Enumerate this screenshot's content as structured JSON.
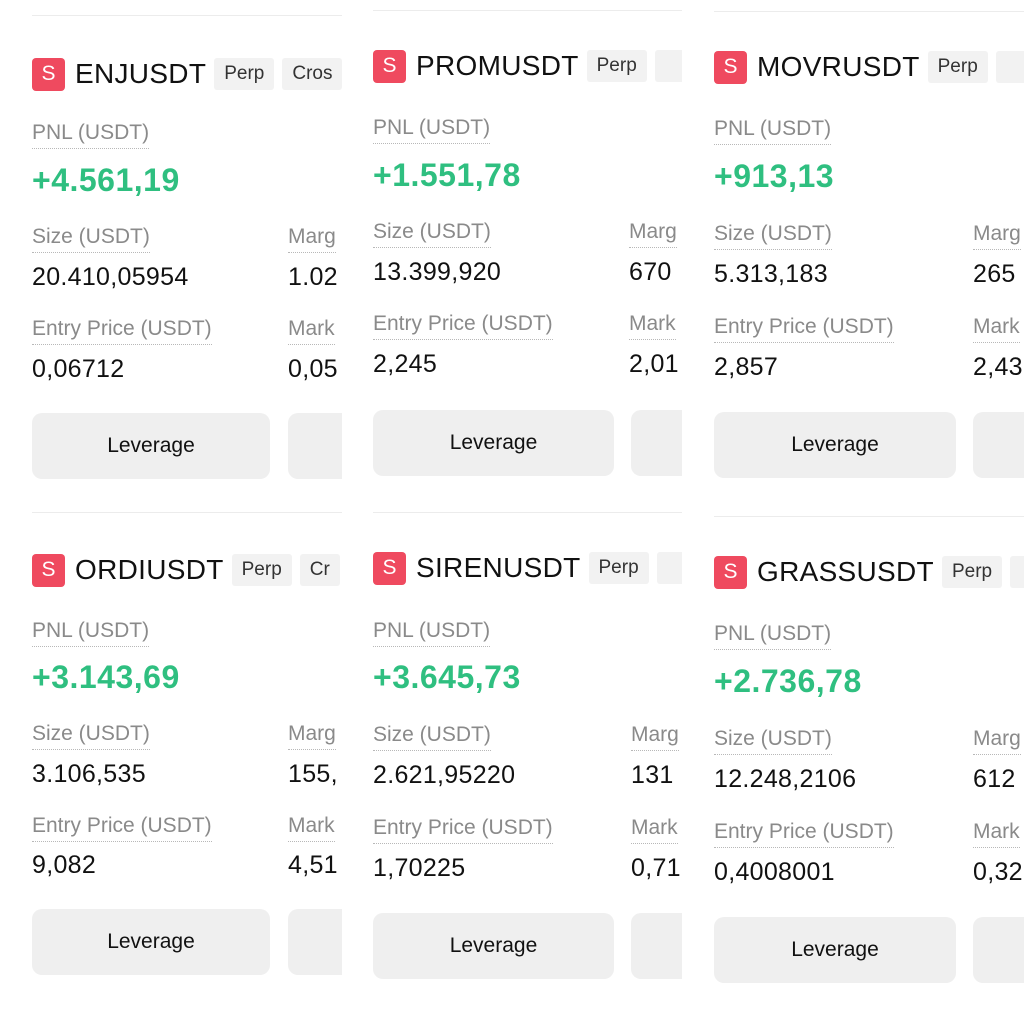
{
  "labels": {
    "pnl": "PNL (USDT)",
    "size": "Size (USDT)",
    "margin": "Marg",
    "entry": "Entry Price (USDT)",
    "mark": "Mark",
    "leverage": "Leverage"
  },
  "positions": [
    {
      "symbol": "ENJUSDT",
      "tag1": "Perp",
      "tag2": "Cros",
      "pnl": "+4.561,19",
      "size": "20.410,05954",
      "margin": "1.02",
      "entry": "0,06712",
      "mark": "0,05"
    },
    {
      "symbol": "PROMUSDT",
      "tag1": "Perp",
      "tag2": "",
      "pnl": "+1.551,78",
      "size": "13.399,920",
      "margin": "670",
      "entry": "2,245",
      "mark": "2,01"
    },
    {
      "symbol": "MOVRUSDT",
      "tag1": "Perp",
      "tag2": "",
      "pnl": "+913,13",
      "size": "5.313,183",
      "margin": "265",
      "entry": "2,857",
      "mark": "2,43"
    },
    {
      "symbol": "ORDIUSDT",
      "tag1": "Perp",
      "tag2": "Cr",
      "pnl": "+3.143,69",
      "size": "3.106,535",
      "margin": "155,",
      "entry": "9,082",
      "mark": "4,51"
    },
    {
      "symbol": "SIRENUSDT",
      "tag1": "Perp",
      "tag2": "",
      "pnl": "+3.645,73",
      "size": "2.621,95220",
      "margin": "131",
      "entry": "1,70225",
      "mark": "0,71"
    },
    {
      "symbol": "GRASSUSDT",
      "tag1": "Perp",
      "tag2": "",
      "pnl": "+2.736,78",
      "size": "12.248,2106",
      "margin": "612",
      "entry": "0,4008001",
      "mark": "0,32"
    }
  ],
  "colors": {
    "pnl_positive": "#2fbf80",
    "badge": "#ef4a5f",
    "button_bg": "#efefef"
  },
  "icons": {
    "badge_letter": "S"
  }
}
